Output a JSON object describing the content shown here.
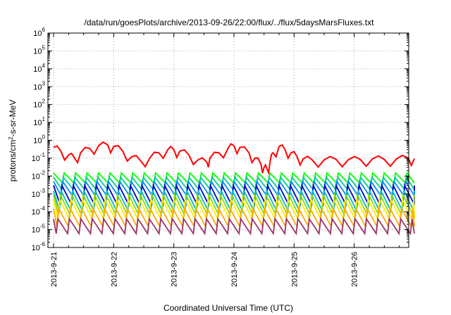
{
  "chart_data": {
    "type": "line",
    "title": "/data/run/goesPlots/archive/2013-09-26/22:00/flux/../flux/5daysMarsFluxes.txt",
    "xlabel": "Coordinated Universal Time (UTC)",
    "ylabel": "protons/cm2-s-sr-MeV",
    "ylabel_parts": {
      "pre": "protons/cm",
      "sup": "2",
      "post": "-s-sr-MeV"
    },
    "x_tick_labels": [
      "2013-9-21",
      "2013-9-22",
      "2013-9-23",
      "2013-9-24",
      "2013-9-25",
      "2013-9-26"
    ],
    "xlim_days": [
      0,
      6
    ],
    "yscale": "log",
    "ylim": [
      1e-06,
      1000000.0
    ],
    "y_tick_exponents": [
      -6,
      -5,
      -4,
      -3,
      -2,
      -1,
      0,
      1,
      2,
      3,
      4,
      5,
      6
    ],
    "grid": true,
    "legend": "none",
    "series": [
      {
        "color": "#ff0000",
        "points": [
          [
            0.0,
            0.4
          ],
          [
            0.12,
            0.25
          ],
          [
            0.25,
            0.15
          ],
          [
            0.35,
            0.1
          ],
          [
            0.45,
            0.2
          ],
          [
            0.6,
            0.35
          ],
          [
            0.75,
            0.5
          ],
          [
            0.9,
            0.55
          ],
          [
            1.0,
            0.45
          ],
          [
            1.15,
            0.25
          ],
          [
            1.3,
            0.12
          ],
          [
            1.45,
            0.07
          ],
          [
            1.6,
            0.1
          ],
          [
            1.75,
            0.2
          ],
          [
            1.9,
            0.3
          ],
          [
            2.0,
            0.3
          ],
          [
            2.1,
            0.25
          ],
          [
            2.25,
            0.15
          ],
          [
            2.4,
            0.08
          ],
          [
            2.55,
            0.06
          ],
          [
            2.6,
            0.1
          ],
          [
            2.75,
            0.2
          ],
          [
            2.9,
            0.35
          ],
          [
            3.0,
            0.5
          ],
          [
            3.1,
            0.4
          ],
          [
            3.25,
            0.2
          ],
          [
            3.35,
            0.1
          ],
          [
            3.45,
            0.045
          ],
          [
            3.5,
            0.03
          ],
          [
            3.55,
            0.025
          ],
          [
            3.6,
            0.06
          ],
          [
            3.65,
            0.2
          ],
          [
            3.75,
            0.45
          ],
          [
            3.85,
            0.3
          ],
          [
            3.95,
            0.2
          ],
          [
            4.05,
            0.12
          ],
          [
            4.15,
            0.09
          ],
          [
            4.3,
            0.08
          ],
          [
            4.5,
            0.08
          ],
          [
            4.7,
            0.085
          ],
          [
            4.9,
            0.08
          ],
          [
            5.1,
            0.085
          ],
          [
            5.3,
            0.09
          ],
          [
            5.5,
            0.085
          ],
          [
            5.7,
            0.09
          ],
          [
            5.9,
            0.1
          ],
          [
            6.0,
            0.095
          ]
        ],
        "ripple": 2.5
      },
      {
        "color": "#00ff00",
        "top": 0.015,
        "bottom": 0.004,
        "ripple": 1
      },
      {
        "color": "#00cc88",
        "top": 0.0085,
        "bottom": 0.0018,
        "ripple": 1
      },
      {
        "color": "#0088ff",
        "top": 0.005,
        "bottom": 0.0008,
        "ripple": 1
      },
      {
        "color": "#0000cc",
        "top": 0.003,
        "bottom": 0.00025,
        "ripple": 1
      },
      {
        "color": "#00bbcc",
        "top": 0.0015,
        "bottom": 0.00012,
        "ripple": 1
      },
      {
        "color": "#88dd00",
        "top": 0.0009,
        "bottom": 7e-05,
        "ripple": 1
      },
      {
        "color": "#ffee00",
        "top": 0.0005,
        "bottom": 4e-05,
        "ripple": 1
      },
      {
        "color": "#ffaa00",
        "top": 0.00015,
        "bottom": 1.5e-05,
        "ripple": 1
      },
      {
        "color": "#993366",
        "top": 4e-05,
        "bottom": 6e-06,
        "ripple": 1
      }
    ]
  }
}
